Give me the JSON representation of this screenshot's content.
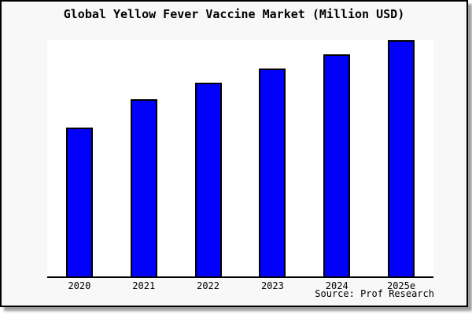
{
  "chart": {
    "title": "Global Yellow Fever Vaccine Market (Million USD)",
    "source": "Source: Prof Research",
    "bar_color": "#0000fb",
    "bar_outline_color": "#000000",
    "figure_background": "#f8f8f9",
    "plot_background": "#ffffff",
    "axis_color": "#000000"
  },
  "chart_data": {
    "type": "bar",
    "title": "Global Yellow Fever Vaccine Market (Million USD)",
    "categories": [
      "2020",
      "2021",
      "2022",
      "2023",
      "2024",
      "2025e"
    ],
    "values": [
      63,
      75,
      82,
      88,
      94,
      100
    ],
    "value_note": "No y-axis ticks or gridlines shown; values estimated relative to tallest bar (2025e = 100)",
    "xlabel": "",
    "ylabel": "",
    "ylim": [
      0,
      100
    ],
    "grid": false,
    "legend": false,
    "annotations": [
      "Source: Prof Research"
    ]
  }
}
